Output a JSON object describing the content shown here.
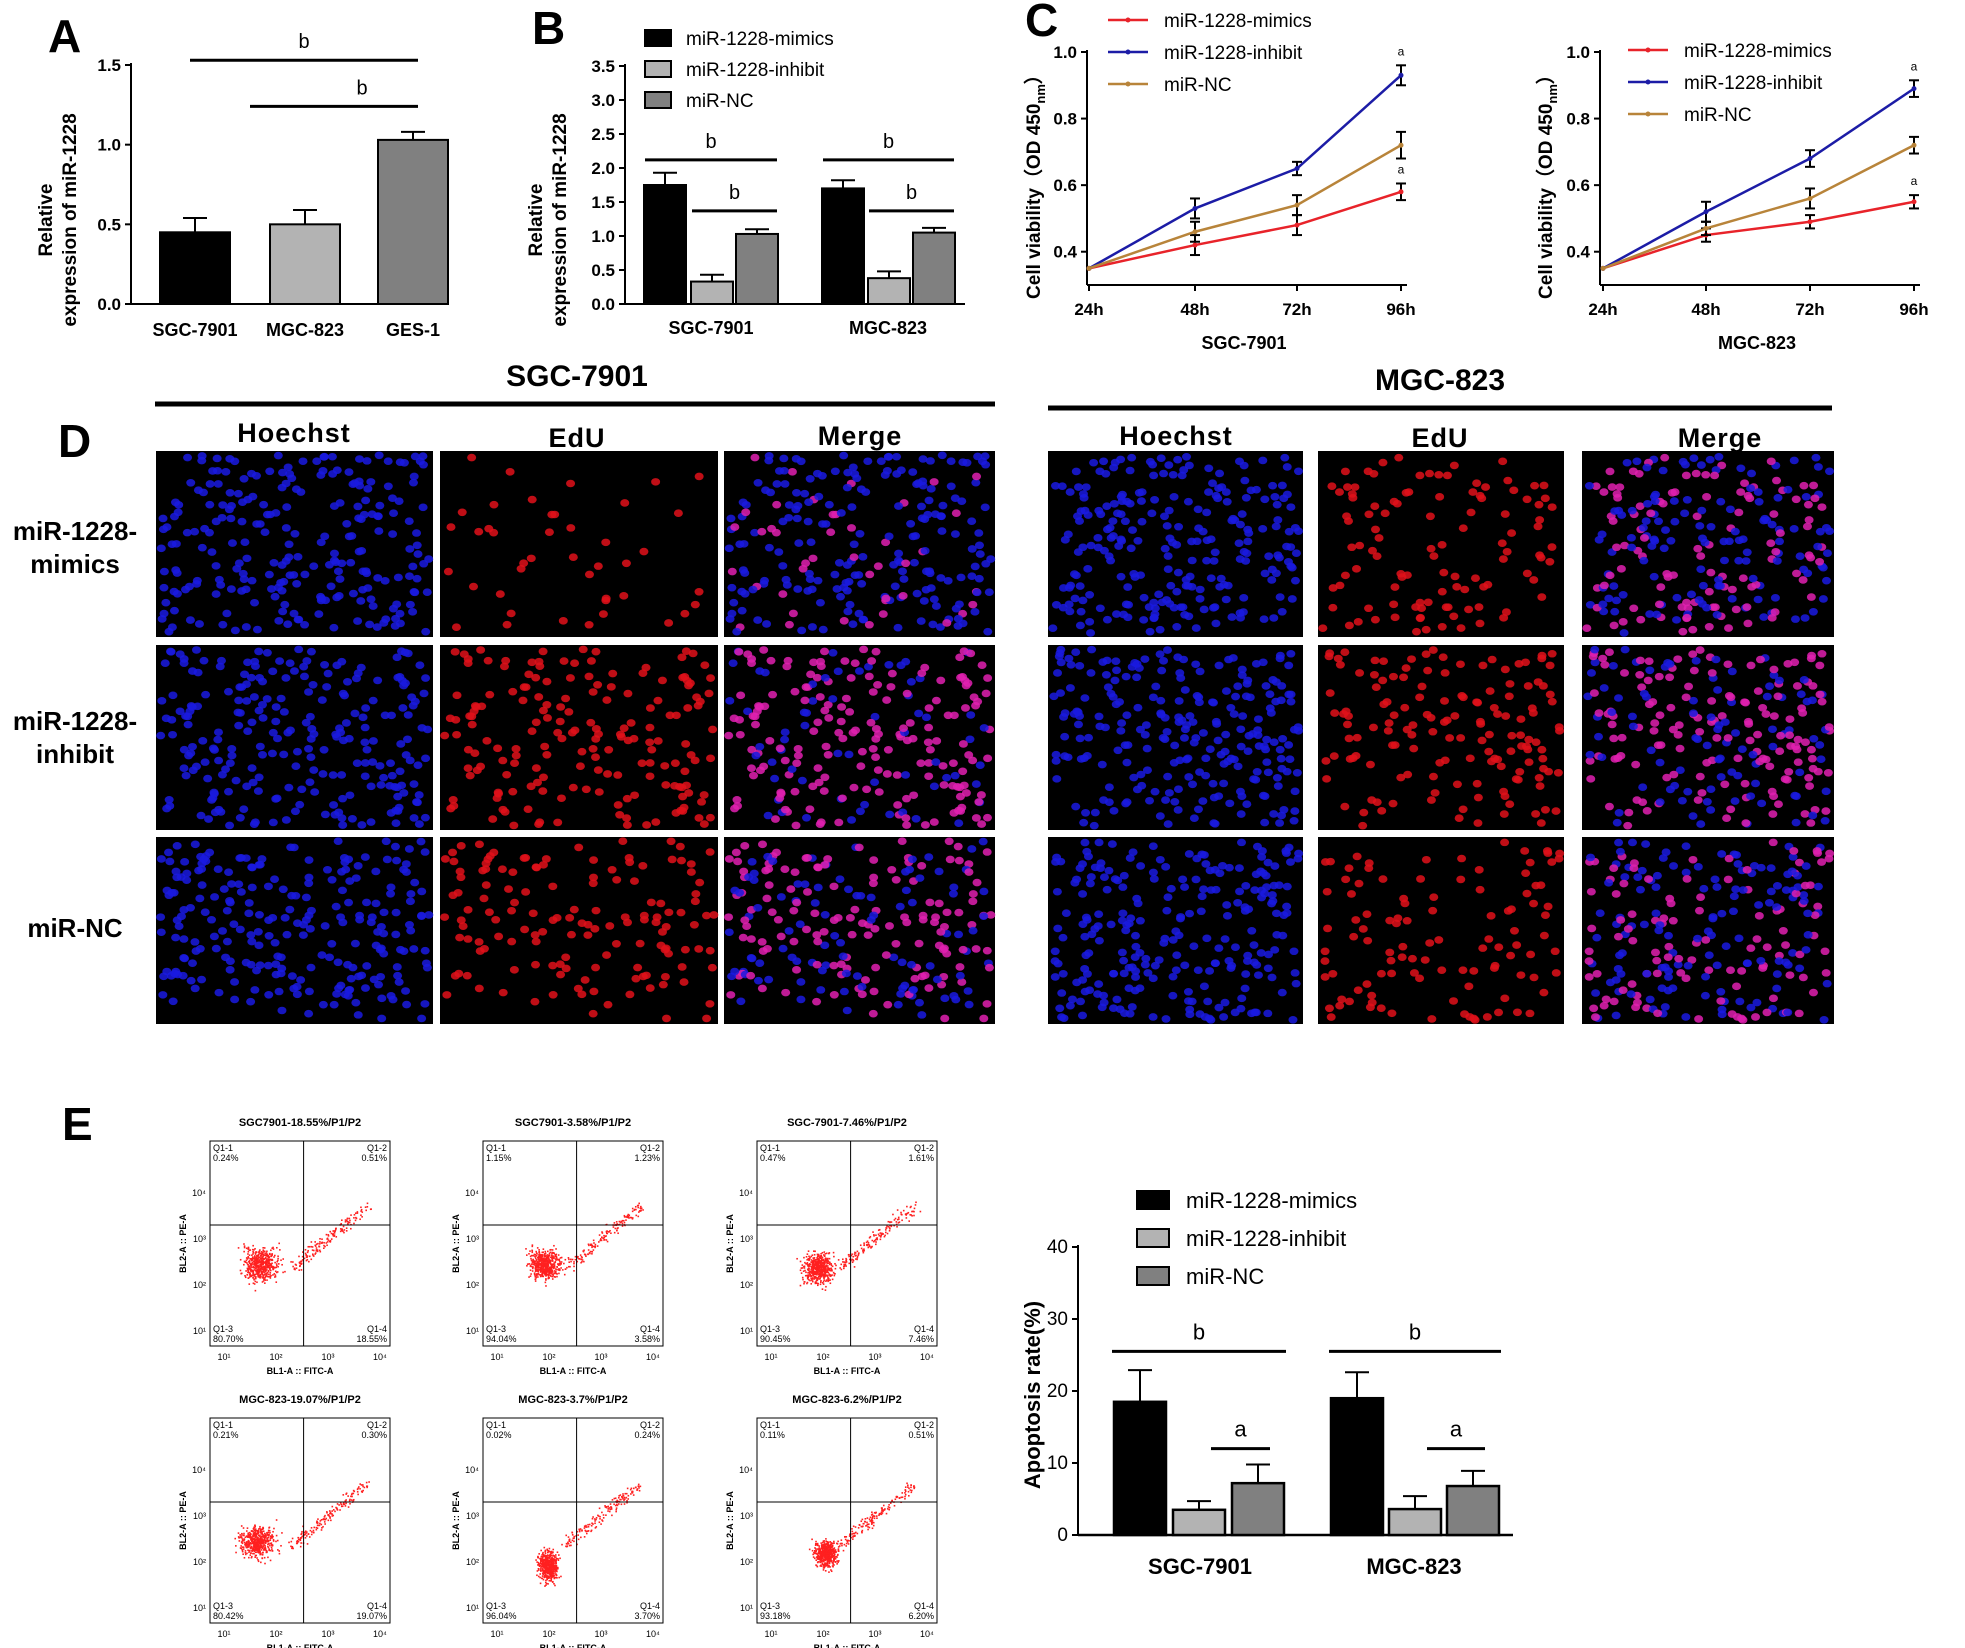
{
  "panel_labels": {
    "A": "A",
    "B": "B",
    "C": "C",
    "D": "D",
    "E": "E"
  },
  "colors": {
    "mimics_bar": "#000000",
    "inhibit_bar": "#b3b3b3",
    "nc_bar": "#808080",
    "mimics_line": "#e8232a",
    "inhibit_line": "#1c1ca6",
    "nc_line": "#b8843a",
    "nucleus_blue": "#1a1ae0",
    "nucleus_red": "#e0101a",
    "nucleus_merge": "#e020b0",
    "flow_dots": "#ff2020"
  },
  "chart_data": [
    {
      "id": "A",
      "type": "bar",
      "title": "",
      "categories": [
        "SGC-7901",
        "MGC-823",
        "GES-1"
      ],
      "values": [
        0.45,
        0.5,
        1.03
      ],
      "errors": [
        0.09,
        0.09,
        0.05
      ],
      "bar_colors": [
        "#000000",
        "#b3b3b3",
        "#808080"
      ],
      "ylabel_line1": "Relative",
      "ylabel_line2": "expression of miR-1228",
      "xlabel": "",
      "ylim": [
        0,
        1.5
      ],
      "yticks": [
        "0.0",
        "0.5",
        "1.0",
        "1.5"
      ],
      "significance": [
        {
          "label": "b",
          "from": 0,
          "to": 2,
          "height": 1.53
        },
        {
          "label": "b",
          "from": 1,
          "to": 2,
          "height": 1.24
        }
      ]
    },
    {
      "id": "B",
      "type": "bar",
      "title": "",
      "categories": [
        "SGC-7901",
        "MGC-823"
      ],
      "series": [
        {
          "name": "miR-1228-mimics",
          "values": [
            1.75,
            1.7
          ],
          "errors": [
            0.18,
            0.12
          ]
        },
        {
          "name": "miR-1228-inhibit",
          "values": [
            0.33,
            0.38
          ],
          "errors": [
            0.1,
            0.1
          ]
        },
        {
          "name": "miR-NC",
          "values": [
            1.03,
            1.05
          ],
          "errors": [
            0.07,
            0.07
          ]
        }
      ],
      "ylabel_line1": "Relative",
      "ylabel_line2": "expression of miR-1228",
      "xlabel": "",
      "ylim": [
        0,
        3.5
      ],
      "yticks": [
        "0.0",
        "0.5",
        "1.0",
        "1.5",
        "2.0",
        "2.5",
        "3.0",
        "3.5"
      ],
      "legend_position": "top",
      "significance": [
        {
          "label": "b",
          "group": 0,
          "from": 0,
          "to": 2,
          "height": 2.12
        },
        {
          "label": "b",
          "group": 0,
          "from": 1,
          "to": 2,
          "height": 1.37
        },
        {
          "label": "b",
          "group": 1,
          "from": 0,
          "to": 2,
          "height": 2.12
        },
        {
          "label": "b",
          "group": 1,
          "from": 1,
          "to": 2,
          "height": 1.37
        }
      ]
    },
    {
      "id": "C-left",
      "type": "line",
      "title": "",
      "categories": [
        "24h",
        "48h",
        "72h",
        "96h"
      ],
      "series": [
        {
          "name": "miR-1228-mimics",
          "values": [
            0.35,
            0.42,
            0.48,
            0.58
          ],
          "errors": [
            0.005,
            0.03,
            0.03,
            0.025
          ]
        },
        {
          "name": "miR-1228-inhibit",
          "values": [
            0.35,
            0.53,
            0.65,
            0.93
          ],
          "errors": [
            0.005,
            0.03,
            0.02,
            0.03
          ]
        },
        {
          "name": "miR-NC",
          "values": [
            0.35,
            0.46,
            0.54,
            0.72
          ],
          "errors": [
            0.005,
            0.03,
            0.03,
            0.04
          ]
        }
      ],
      "ylabel": "Cell viability（OD 450",
      "ylabel_sub": "nm",
      "ylabel_close": "）",
      "xlabel": "SGC-7901",
      "ylim": [
        0.3,
        1.0
      ],
      "yticks": [
        "0.4",
        "0.6",
        "0.8",
        "1.0"
      ],
      "annotations": [
        "a",
        "a"
      ],
      "legend_position": "top-left"
    },
    {
      "id": "C-right",
      "type": "line",
      "title": "",
      "categories": [
        "24h",
        "48h",
        "72h",
        "96h"
      ],
      "series": [
        {
          "name": "miR-1228-mimics",
          "values": [
            0.35,
            0.45,
            0.49,
            0.55
          ],
          "errors": [
            0.005,
            0.02,
            0.02,
            0.02
          ]
        },
        {
          "name": "miR-1228-inhibit",
          "values": [
            0.35,
            0.52,
            0.68,
            0.89
          ],
          "errors": [
            0.005,
            0.03,
            0.025,
            0.025
          ]
        },
        {
          "name": "miR-NC",
          "values": [
            0.35,
            0.47,
            0.56,
            0.72
          ],
          "errors": [
            0.005,
            0.02,
            0.03,
            0.025
          ]
        }
      ],
      "ylabel": "Cell viability（OD 450",
      "ylabel_sub": "nm",
      "ylabel_close": "）",
      "xlabel": "MGC-823",
      "ylim": [
        0.3,
        1.0
      ],
      "yticks": [
        "0.4",
        "0.6",
        "0.8",
        "1.0"
      ],
      "annotations": [
        "a",
        "a"
      ],
      "legend_position": "top-left"
    },
    {
      "id": "E-bar",
      "type": "bar",
      "title": "",
      "categories": [
        "SGC-7901",
        "MGC-823"
      ],
      "series": [
        {
          "name": "miR-1228-mimics",
          "values": [
            18.5,
            19.0
          ],
          "errors": [
            4.4,
            3.6
          ]
        },
        {
          "name": "miR-1228-inhibit",
          "values": [
            3.5,
            3.6
          ],
          "errors": [
            1.2,
            1.8
          ]
        },
        {
          "name": "miR-NC",
          "values": [
            7.2,
            6.8
          ],
          "errors": [
            2.6,
            2.1
          ]
        }
      ],
      "ylabel": "Apoptosis rate(%)",
      "xlabel": "",
      "ylim": [
        0,
        40
      ],
      "yticks": [
        "0",
        "10",
        "20",
        "30",
        "40"
      ],
      "legend_position": "top",
      "significance": [
        {
          "label": "b",
          "group": 0,
          "height": 25.5
        },
        {
          "label": "a",
          "group": 0,
          "height": 12
        },
        {
          "label": "b",
          "group": 1,
          "height": 25.5
        },
        {
          "label": "a",
          "group": 1,
          "height": 12
        }
      ]
    }
  ],
  "panel_d": {
    "cell_lines": [
      "SGC-7901",
      "MGC-823"
    ],
    "channels": [
      "Hoechst",
      "EdU",
      "Merge"
    ],
    "rows": [
      {
        "line1": "miR-1228-",
        "line2": "mimics"
      },
      {
        "line1": "miR-1228-",
        "line2": "inhibit"
      },
      {
        "line1": "miR-NC",
        "line2": ""
      }
    ],
    "edu_density": [
      [
        0.2,
        0.45
      ],
      [
        0.7,
        0.55
      ],
      [
        0.6,
        0.45
      ]
    ]
  },
  "flow": {
    "y_axis_label": "BL2-A :: PE-A",
    "x_axis_label": "BL1-A :: FITC-A",
    "ticks": [
      "10¹",
      "10²",
      "10³",
      "10⁴"
    ],
    "plots": [
      {
        "title": "SGC7901-18.55%/P1/P2",
        "q1": "Q1-1\n0.24%",
        "q2": "Q1-2\n0.51%",
        "q3": "Q1-3\n80.70%",
        "q4": "Q1-4\n18.55%"
      },
      {
        "title": "SGC7901-3.58%/P1/P2",
        "q1": "Q1-1\n1.15%",
        "q2": "Q1-2\n1.23%",
        "q3": "Q1-3\n94.04%",
        "q4": "Q1-4\n3.58%"
      },
      {
        "title": "SGC-7901-7.46%/P1/P2",
        "q1": "Q1-1\n0.47%",
        "q2": "Q1-2\n1.61%",
        "q3": "Q1-3\n90.45%",
        "q4": "Q1-4\n7.46%"
      },
      {
        "title": "MGC-823-19.07%/P1/P2",
        "q1": "Q1-1\n0.21%",
        "q2": "Q1-2\n0.30%",
        "q3": "Q1-3\n80.42%",
        "q4": "Q1-4\n19.07%"
      },
      {
        "title": "MGC-823-3.7%/P1/P2",
        "q1": "Q1-1\n0.02%",
        "q2": "Q1-2\n0.24%",
        "q3": "Q1-3\n96.04%",
        "q4": "Q1-4\n3.70%"
      },
      {
        "title": "MGC-823-6.2%/P1/P2",
        "q1": "Q1-1\n0.11%",
        "q2": "Q1-2\n0.51%",
        "q3": "Q1-3\n93.18%",
        "q4": "Q1-4\n6.20%"
      }
    ]
  }
}
